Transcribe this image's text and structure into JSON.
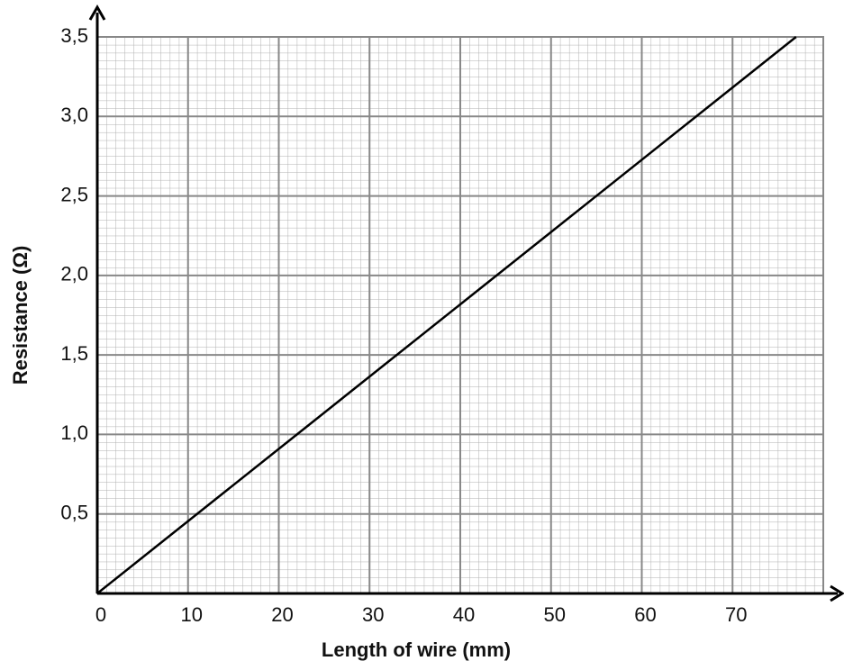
{
  "chart_data": {
    "type": "line",
    "x_label": "Length of wire (mm)",
    "y_label": "Resistance (Ω)",
    "x": [
      0,
      77
    ],
    "series": [
      {
        "color": "#000000",
        "values": [
          0,
          3.5
        ]
      }
    ],
    "xlim": [
      0,
      80
    ],
    "xticks": [
      0,
      10,
      20,
      30,
      40,
      50,
      60,
      70
    ],
    "ylim": [
      0,
      3.5
    ],
    "yticks": [
      {
        "value": 0.5,
        "label": "0,5"
      },
      {
        "value": 1.0,
        "label": "1,0"
      },
      {
        "value": 1.5,
        "label": "1,5"
      },
      {
        "value": 2.0,
        "label": "2,0"
      },
      {
        "value": 2.5,
        "label": "2,5"
      },
      {
        "value": 3.0,
        "label": "3,0"
      },
      {
        "value": 3.5,
        "label": "3,5"
      }
    ],
    "grid": true
  }
}
